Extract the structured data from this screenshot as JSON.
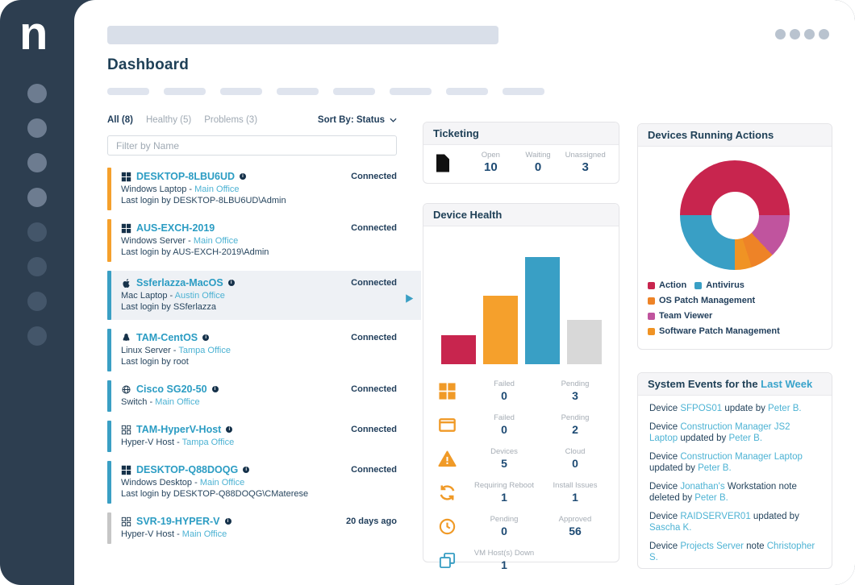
{
  "sidebar": {
    "logo": "n"
  },
  "header": {
    "title": "Dashboard"
  },
  "device_list": {
    "tabs": [
      {
        "label": "All (8)",
        "active": true
      },
      {
        "label": "Healthy (5)",
        "active": false
      },
      {
        "label": "Problems (3)",
        "active": false
      }
    ],
    "sort_label": "Sort By: Status",
    "filter_placeholder": "Filter by Name",
    "devices": [
      {
        "name": "DESKTOP-8LBU6UD",
        "os_icon": "windows-icon",
        "bar_color": "#f5a02c",
        "status": "Connected",
        "type": "Windows Laptop",
        "office": "Main Office",
        "last_login": "Last login by DESKTOP-8LBU6UD\\Admin",
        "has_info": true,
        "highlighted": false,
        "has_play": false
      },
      {
        "name": "AUS-EXCH-2019",
        "os_icon": "windows-icon",
        "bar_color": "#f5a02c",
        "status": "Connected",
        "type": "Windows Server",
        "office": "Main Office",
        "last_login": "Last login by AUS-EXCH-2019\\Admin",
        "has_info": false,
        "highlighted": false,
        "has_play": false
      },
      {
        "name": "Ssferlazza-MacOS",
        "os_icon": "apple-icon",
        "bar_color": "#3a9fc4",
        "status": "Connected",
        "type": "Mac Laptop",
        "office": "Austin Office",
        "last_login": "Last login by SSferlazza",
        "has_info": true,
        "highlighted": true,
        "has_play": true
      },
      {
        "name": "TAM-CentOS",
        "os_icon": "linux-icon",
        "bar_color": "#3a9fc4",
        "status": "Connected",
        "type": "Linux Server",
        "office": "Tampa Office",
        "last_login": "Last login by root",
        "has_info": true,
        "highlighted": false,
        "has_play": false
      },
      {
        "name": "Cisco SG20-50",
        "os_icon": "globe-icon",
        "bar_color": "#3a9fc4",
        "status": "Connected",
        "type": "Switch",
        "office": "Main Office",
        "last_login": "",
        "has_info": true,
        "highlighted": false,
        "has_play": false
      },
      {
        "name": "TAM-HyperV-Host",
        "os_icon": "hyperv-icon",
        "bar_color": "#3a9fc4",
        "status": "Connected",
        "type": "Hyper-V Host",
        "office": "Tampa Office",
        "last_login": "",
        "has_info": true,
        "highlighted": false,
        "has_play": false
      },
      {
        "name": "DESKTOP-Q88DOQG",
        "os_icon": "windows-icon",
        "bar_color": "#3a9fc4",
        "status": "Connected",
        "type": "Windows Desktop",
        "office": "Main Office",
        "last_login": "Last login by DESKTOP-Q88DOQG\\CMaterese",
        "has_info": true,
        "highlighted": false,
        "has_play": false
      },
      {
        "name": "SVR-19-HYPER-V",
        "os_icon": "hyperv-icon",
        "bar_color": "#c6c6c6",
        "status": "20 days ago",
        "type": "Hyper-V Host",
        "office": "Main Office",
        "last_login": "",
        "has_info": true,
        "highlighted": false,
        "has_play": false
      }
    ]
  },
  "ticketing": {
    "title": "Ticketing",
    "icon": "document-icon",
    "stats": [
      {
        "label": "Open",
        "value": "10"
      },
      {
        "label": "Waiting",
        "value": "0"
      },
      {
        "label": "Unassigned",
        "value": "3"
      }
    ]
  },
  "device_health": {
    "title": "Device Health",
    "rows": [
      {
        "icon": "windows-icon",
        "icon_color": "#f09a27",
        "stats": [
          {
            "label": "Failed",
            "value": "0"
          },
          {
            "label": "Pending",
            "value": "3"
          }
        ]
      },
      {
        "icon": "app-window-icon",
        "icon_color": "#f09a27",
        "stats": [
          {
            "label": "Failed",
            "value": "0"
          },
          {
            "label": "Pending",
            "value": "2"
          }
        ]
      },
      {
        "icon": "warning-icon",
        "icon_color": "#f09a27",
        "stats": [
          {
            "label": "Devices",
            "value": "5"
          },
          {
            "label": "Cloud",
            "value": "0"
          }
        ]
      },
      {
        "icon": "sync-icon",
        "icon_color": "#f09a27",
        "stats": [
          {
            "label": "Requiring Reboot",
            "value": "1"
          },
          {
            "label": "Install Issues",
            "value": "1"
          }
        ]
      },
      {
        "icon": "clock-icon",
        "icon_color": "#f09a27",
        "stats": [
          {
            "label": "Pending",
            "value": "0"
          },
          {
            "label": "Approved",
            "value": "56"
          }
        ]
      },
      {
        "icon": "vm-icon",
        "icon_color": "#3a9fc4",
        "stats": [
          {
            "label": "VM Host(s) Down",
            "value": "1"
          }
        ]
      }
    ]
  },
  "running_actions": {
    "title": "Devices Running Actions",
    "legend": [
      {
        "label": "Action",
        "color": "#c8254e"
      },
      {
        "label": "Antivirus",
        "color": "#399fc5"
      },
      {
        "label": "OS Patch Management",
        "color": "#ee8327"
      },
      {
        "label": "Team Viewer",
        "color": "#c0549e"
      },
      {
        "label": "Software Patch Management",
        "color": "#f09324"
      }
    ]
  },
  "system_events": {
    "title_prefix": "System Events for the ",
    "title_link": "Last Week",
    "events": [
      {
        "segments": [
          {
            "text": "Device ",
            "link": false
          },
          {
            "text": "SFPOS01",
            "link": true
          },
          {
            "text": " update by ",
            "link": false
          },
          {
            "text": "Peter B.",
            "link": true
          }
        ]
      },
      {
        "segments": [
          {
            "text": "Device ",
            "link": false
          },
          {
            "text": "Construction Manager JS2 Laptop",
            "link": true
          },
          {
            "text": " updated by ",
            "link": false
          },
          {
            "text": "Peter B.",
            "link": true
          }
        ]
      },
      {
        "segments": [
          {
            "text": "Device ",
            "link": false
          },
          {
            "text": "Construction Manager Laptop",
            "link": true
          },
          {
            "text": " updated by ",
            "link": false
          },
          {
            "text": "Peter B.",
            "link": true
          }
        ]
      },
      {
        "segments": [
          {
            "text": "Device ",
            "link": false
          },
          {
            "text": "Jonathan's",
            "link": true
          },
          {
            "text": " Workstation note deleted by ",
            "link": false
          },
          {
            "text": "Peter B.",
            "link": true
          }
        ]
      },
      {
        "segments": [
          {
            "text": "Device ",
            "link": false
          },
          {
            "text": "RAIDSERVER01",
            "link": true
          },
          {
            "text": " updated by ",
            "link": false
          },
          {
            "text": "Sascha K.",
            "link": true
          }
        ]
      },
      {
        "segments": [
          {
            "text": "Device ",
            "link": false
          },
          {
            "text": "Projects Server",
            "link": true
          },
          {
            "text": " note ",
            "link": false
          },
          {
            "text": "Christopher S.",
            "link": true
          }
        ]
      }
    ]
  },
  "chart_data": [
    {
      "type": "bar",
      "title": "Device Health",
      "categories": [
        "red",
        "orange",
        "blue",
        "gray"
      ],
      "relative_heights_pct": [
        25,
        58,
        91,
        38
      ],
      "colors": [
        "#c8254e",
        "#f5a02c",
        "#399fc5",
        "#d8d8d8"
      ],
      "xlabel": "",
      "ylabel": "",
      "axis_labels_visible": false,
      "grid": false
    },
    {
      "type": "donut",
      "title": "Devices Running Actions",
      "start_angle_deg": 90,
      "hole_pct": 43,
      "segments": [
        {
          "label": "Team Viewer",
          "pct": 13,
          "color": "#c0549e"
        },
        {
          "label": "OS Patch Management",
          "pct": 7,
          "color": "#ee8327"
        },
        {
          "label": "Software Patch Management",
          "pct": 5,
          "color": "#f09324"
        },
        {
          "label": "Antivirus",
          "pct": 25,
          "color": "#399fc5"
        },
        {
          "label": "Action",
          "pct": 50,
          "color": "#c8254e"
        }
      ],
      "legend_position": "bottom"
    }
  ]
}
